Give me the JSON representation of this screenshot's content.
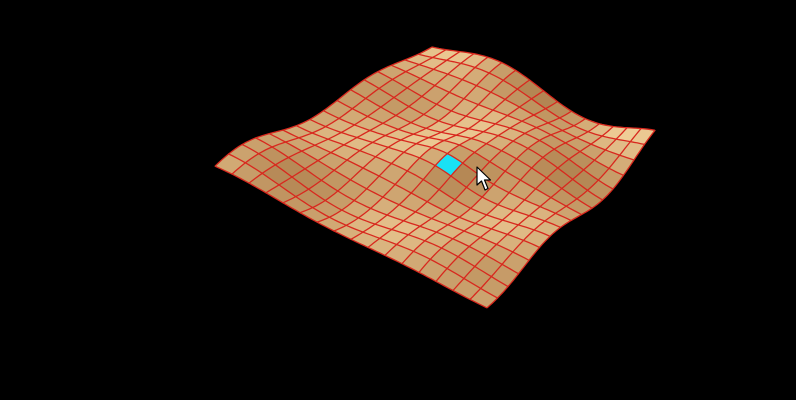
{
  "scene": {
    "background_color": "#000000",
    "surface_color": "#e2b57c",
    "surface_shadow_color": "#b8864f",
    "grid_line_color": "#d8281e",
    "highlight_color": "#19e1f5",
    "grid_divisions": 16,
    "highlighted_cell": [
      7,
      8
    ]
  },
  "cursor": {
    "icon": "arrow-pointer-icon"
  }
}
